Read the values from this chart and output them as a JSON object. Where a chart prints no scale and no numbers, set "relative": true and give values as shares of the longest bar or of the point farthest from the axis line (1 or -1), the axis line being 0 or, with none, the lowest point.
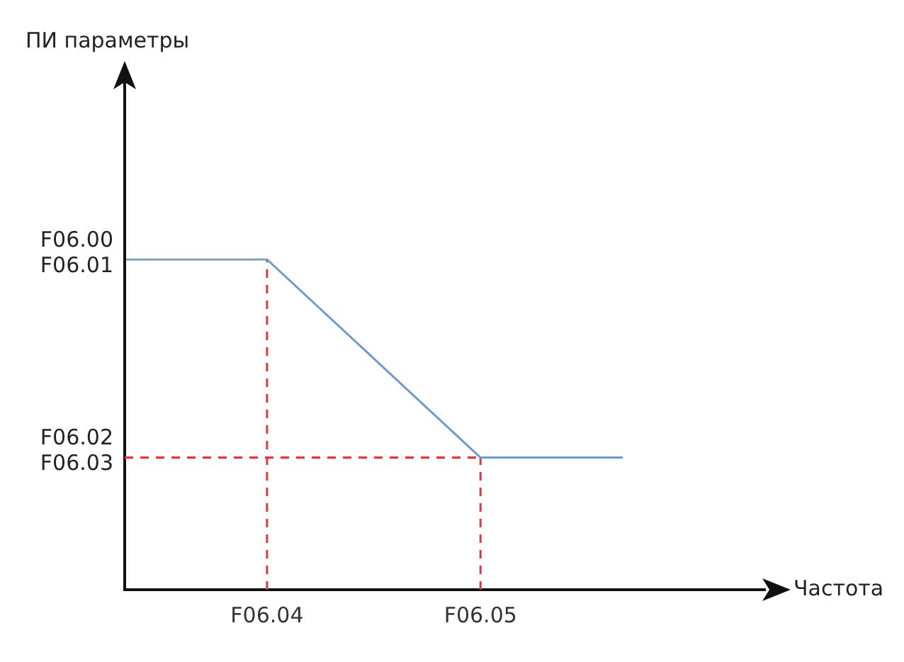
{
  "chart_data": {
    "type": "line",
    "relative": true,
    "xlabel": "Частота",
    "categories": [
      null,
      null,
      "F06.04",
      null,
      null,
      "F06.05",
      null,
      null,
      null,
      null
    ],
    "series": [
      {
        "color": "#6f9bc8",
        "values": [
          1,
          null,
          1,
          null,
          null,
          0.4,
          null,
          0.4,
          null,
          null
        ]
      }
    ],
    "annotations": [
      "F06.00\nF06.01",
      "F06.02\nF06.03",
      "ПИ параметры"
    ],
    "ref_lines": [
      {
        "axis": "x",
        "value": "F06.04",
        "color": "#e8333a",
        "line_style": "dashed"
      },
      {
        "axis": "x",
        "value": "F06.05",
        "color": "#e8333a",
        "line_style": "dashed"
      },
      {
        "axis": "y",
        "value": 0.4,
        "color": "#e8333a",
        "line_style": "dashed"
      }
    ],
    "grid": false,
    "legend": false,
    "marker": "none",
    "line_style": "solid"
  }
}
